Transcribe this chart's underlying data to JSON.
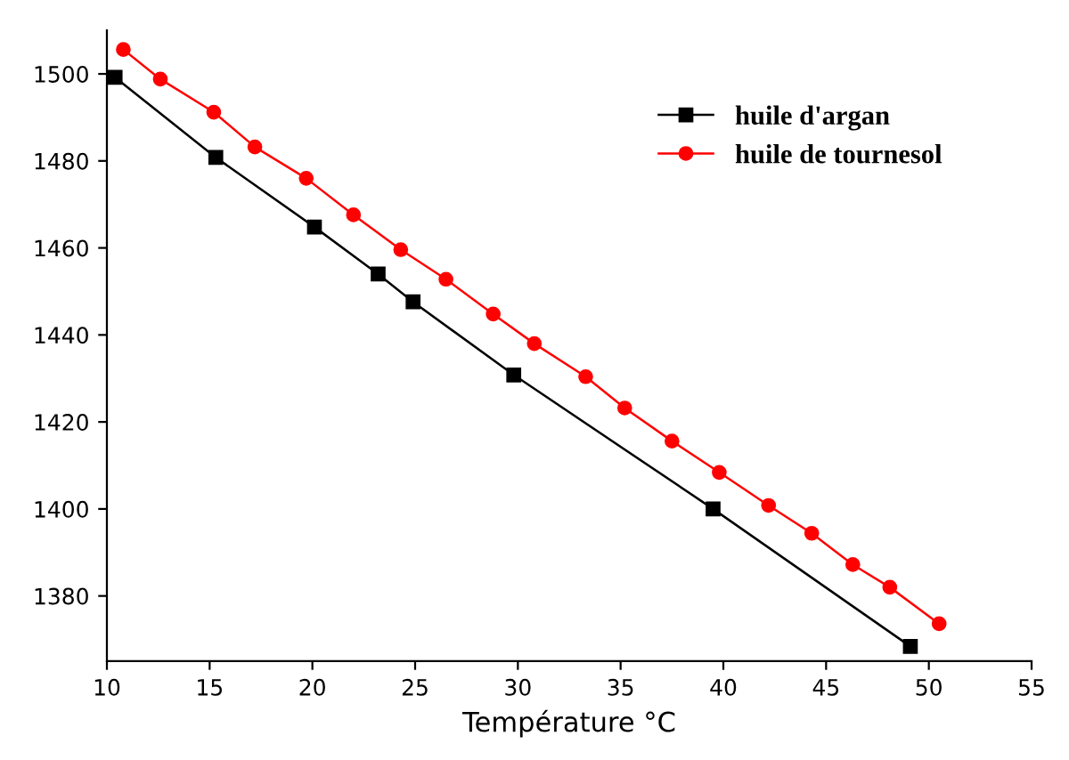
{
  "chart_data": {
    "type": "line",
    "xlabel": "Température °C",
    "xlim": [
      10,
      55
    ],
    "ylim": [
      1365,
      1510
    ],
    "xticks": [
      10,
      15,
      20,
      25,
      30,
      35,
      40,
      45,
      50,
      55
    ],
    "yticks": [
      1380,
      1400,
      1420,
      1440,
      1460,
      1480,
      1500
    ],
    "legend": "top",
    "grid": false,
    "line_style": "solid",
    "series": [
      {
        "name": "huile d'argan",
        "color": "#000000",
        "marker": "square",
        "x": [
          10.4,
          15.3,
          20.1,
          23.2,
          24.9,
          29.8,
          39.5,
          49.1
        ],
        "values": [
          1499.2,
          1480.8,
          1464.8,
          1454,
          1447.6,
          1430.8,
          1400,
          1368.4
        ]
      },
      {
        "name": "huile de tournesol",
        "color": "#ff0000",
        "marker": "circle",
        "x": [
          10.8,
          12.6,
          15.2,
          17.2,
          19.7,
          22.0,
          24.3,
          26.5,
          28.8,
          30.8,
          33.3,
          35.2,
          37.5,
          39.8,
          42.2,
          44.3,
          46.3,
          48.1,
          50.5
        ],
        "values": [
          1505.6,
          1498.8,
          1491.2,
          1483.2,
          1476,
          1467.6,
          1459.6,
          1452.8,
          1444.8,
          1438,
          1430.4,
          1423.2,
          1415.6,
          1408.4,
          1400.8,
          1394.4,
          1387.2,
          1382,
          1373.6
        ]
      }
    ]
  }
}
